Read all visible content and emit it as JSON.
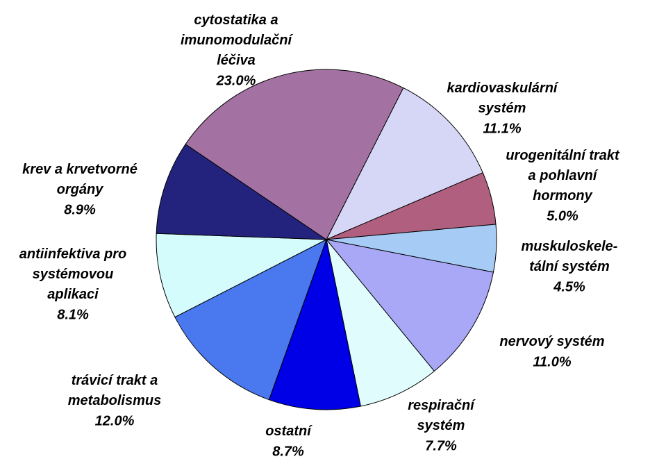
{
  "chart_data": {
    "type": "pie",
    "categories": [
      "kardiovaskulární\nsystém",
      "urogenitální trakt\na pohlavní\nhormony",
      "muskuloskele-\ntální systém",
      "nervový systém",
      "respirační\nsystém",
      "ostatní",
      "trávicí trakt a\nmetabolismus",
      "antiinfektiva pro\nsystémovou\naplikaci",
      "krev a krvetvorné\norgány",
      "cytostatika  a\nimunomodulační\nléčiva"
    ],
    "values": [
      11.1,
      5.0,
      4.5,
      11.0,
      7.7,
      8.7,
      12.0,
      8.1,
      8.9,
      23.0
    ],
    "value_labels": [
      "11.1%",
      "5.0%",
      "4.5%",
      "11.0%",
      "7.7%",
      "8.7%",
      "12.0%",
      "8.1%",
      "8.9%",
      "23.0%"
    ],
    "colors": [
      "#d6d6f6",
      "#b0607e",
      "#a6ccf6",
      "#a8a8f6",
      "#e0fcfc",
      "#0000e6",
      "#4a78ee",
      "#d4fcfc",
      "#23237e",
      "#a472a2"
    ]
  }
}
